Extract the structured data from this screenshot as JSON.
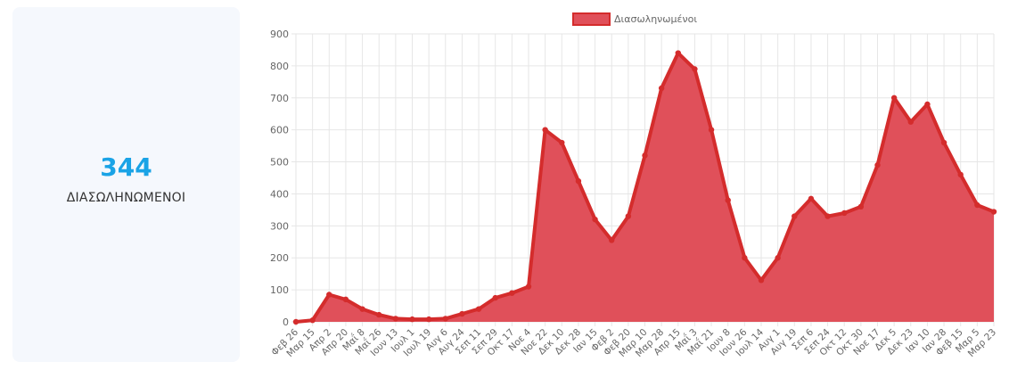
{
  "stat": {
    "value": "344",
    "label": "ΔΙΑΣΩΛΗΝΩΜΕΝΟΙ"
  },
  "colors": {
    "accent": "#1aa3e6",
    "series_fill": "#e0505a",
    "series_line": "#d42c2c",
    "grid": "#e6e6e6"
  },
  "chart_data": {
    "type": "area",
    "title": "",
    "xlabel": "",
    "ylabel": "",
    "ylim": [
      0,
      900
    ],
    "yticks": [
      0,
      100,
      200,
      300,
      400,
      500,
      600,
      700,
      800,
      900
    ],
    "grid": true,
    "legend_position": "top",
    "categories": [
      "Φεβ 26",
      "Μαρ 15",
      "Απρ 2",
      "Απρ 20",
      "Μαΐ 8",
      "Μαΐ 26",
      "Ιουν 13",
      "Ιουλ 1",
      "Ιουλ 19",
      "Αυγ 6",
      "Αυγ 24",
      "Σεπ 11",
      "Σεπ 29",
      "Οκτ 17",
      "Νοε 4",
      "Νοε 22",
      "Δεκ 10",
      "Δεκ 28",
      "Ιαν 15",
      "Φεβ 2",
      "Φεβ 20",
      "Μαρ 10",
      "Μαρ 28",
      "Απρ 15",
      "Μαΐ 3",
      "Μαΐ 21",
      "Ιουν 8",
      "Ιουν 26",
      "Ιουλ 14",
      "Αυγ 1",
      "Αυγ 19",
      "Σεπ 6",
      "Σεπ 24",
      "Οκτ 12",
      "Οκτ 30",
      "Νοε 17",
      "Δεκ 5",
      "Δεκ 23",
      "Ιαν 10",
      "Ιαν 28",
      "Φεβ 15",
      "Μαρ 5",
      "Μαρ 23"
    ],
    "series": [
      {
        "name": "Διασωληνωμένοι",
        "values": [
          0,
          5,
          85,
          70,
          40,
          22,
          10,
          8,
          8,
          10,
          25,
          40,
          75,
          90,
          110,
          600,
          560,
          440,
          320,
          255,
          330,
          520,
          730,
          840,
          790,
          600,
          380,
          200,
          130,
          200,
          330,
          385,
          330,
          340,
          360,
          490,
          700,
          625,
          680,
          560,
          460,
          365,
          344
        ]
      }
    ]
  }
}
